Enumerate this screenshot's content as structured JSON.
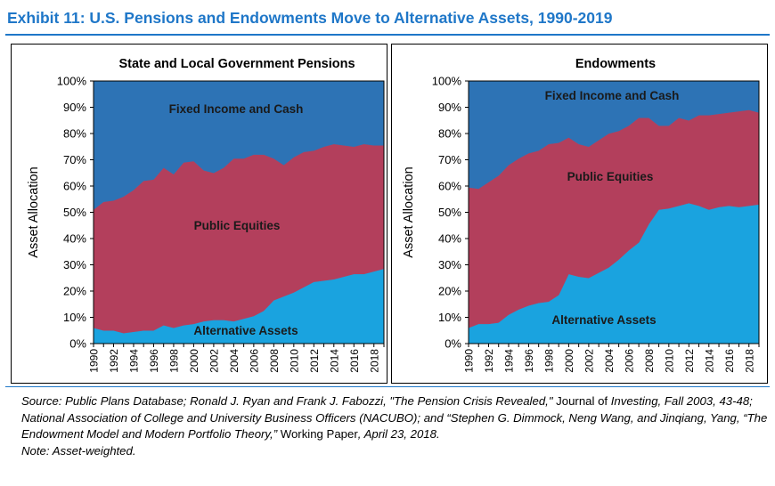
{
  "exhibit_title": "Exhibit 11: U.S. Pensions and Endowments Move to Alternative Assets, 1990-2019",
  "colors": {
    "fixed_income": "#2d73b5",
    "public_equities": "#b33f5c",
    "alternatives": "#1aa3df",
    "title": "#1f77c8"
  },
  "chart_data": [
    {
      "type": "area",
      "title": "State and Local Government Pensions",
      "ylabel": "Asset Allocation",
      "xlabel": "",
      "ylim": [
        0,
        100
      ],
      "yticks": [
        0,
        10,
        20,
        30,
        40,
        50,
        60,
        70,
        80,
        90,
        100
      ],
      "ytick_labels": [
        "0%",
        "10%",
        "20%",
        "30%",
        "40%",
        "50%",
        "60%",
        "70%",
        "80%",
        "90%",
        "100%"
      ],
      "xtick_labels": [
        "1990",
        "1992",
        "1994",
        "1996",
        "1998",
        "2000",
        "2002",
        "2004",
        "2006",
        "2008",
        "2010",
        "2012",
        "2014",
        "2016",
        "2018"
      ],
      "x": [
        1990,
        1991,
        1992,
        1993,
        1994,
        1995,
        1996,
        1997,
        1998,
        1999,
        2000,
        2001,
        2002,
        2003,
        2004,
        2005,
        2006,
        2007,
        2008,
        2009,
        2010,
        2011,
        2012,
        2013,
        2014,
        2015,
        2016,
        2017,
        2018,
        2019
      ],
      "series": [
        {
          "name": "Alternative Assets",
          "values": [
            6,
            5,
            5,
            4,
            4.5,
            5,
            5,
            7,
            6,
            7,
            7.5,
            8.5,
            9,
            9,
            8.5,
            9.5,
            10.5,
            12.5,
            16.5,
            18,
            19.5,
            21.5,
            23.5,
            24,
            24.5,
            25.5,
            26.5,
            26.5,
            27.5,
            28.5
          ]
        },
        {
          "name": "Public Equities",
          "values": [
            45,
            49,
            49.5,
            52,
            54,
            57,
            57.5,
            60,
            58.5,
            62,
            62,
            57.5,
            56,
            58,
            62,
            61,
            61.5,
            59.5,
            54,
            50,
            51.5,
            51.5,
            50,
            51,
            51.5,
            50,
            48.5,
            49.5,
            48,
            47
          ]
        },
        {
          "name": "Fixed Income and Cash",
          "values": [
            49,
            46,
            45.5,
            44,
            41.5,
            38,
            37.5,
            33,
            35.5,
            31,
            30.5,
            34,
            35,
            33,
            29.5,
            29.5,
            28,
            28,
            29.5,
            32,
            29,
            27,
            26.5,
            25,
            24,
            24.5,
            25,
            24,
            24.5,
            24.5
          ]
        }
      ],
      "labels": {
        "fixed_income": "Fixed Income and Cash",
        "public_equities": "Public Equities",
        "alternatives": "Alternative Assets"
      }
    },
    {
      "type": "area",
      "title": "Endowments",
      "ylabel": "Asset Allocation",
      "xlabel": "",
      "ylim": [
        0,
        100
      ],
      "yticks": [
        0,
        10,
        20,
        30,
        40,
        50,
        60,
        70,
        80,
        90,
        100
      ],
      "ytick_labels": [
        "0%",
        "10%",
        "20%",
        "30%",
        "40%",
        "50%",
        "60%",
        "70%",
        "80%",
        "90%",
        "100%"
      ],
      "xtick_labels": [
        "1990",
        "1992",
        "1994",
        "1996",
        "1998",
        "2000",
        "2002",
        "2004",
        "2006",
        "2008",
        "2010",
        "2012",
        "2014",
        "2016",
        "2018"
      ],
      "x": [
        1990,
        1991,
        1992,
        1993,
        1994,
        1995,
        1996,
        1997,
        1998,
        1999,
        2000,
        2001,
        2002,
        2003,
        2004,
        2005,
        2006,
        2007,
        2008,
        2009,
        2010,
        2011,
        2012,
        2013,
        2014,
        2015,
        2016,
        2017,
        2018,
        2019
      ],
      "series": [
        {
          "name": "Alternative Assets",
          "values": [
            6,
            7.5,
            7.5,
            8,
            11,
            13,
            14.5,
            15.5,
            16,
            18.5,
            26.5,
            25.5,
            25,
            27,
            29,
            32,
            35.5,
            38.5,
            45.5,
            51,
            51.5,
            52.5,
            53.5,
            52.5,
            51,
            52,
            52.5,
            52,
            52.5,
            53
          ]
        },
        {
          "name": "Public Equities",
          "values": [
            53.5,
            51.5,
            54,
            56,
            57,
            57.5,
            58,
            58,
            60,
            58,
            52,
            50.5,
            50,
            50.5,
            51,
            49,
            47.5,
            47.5,
            40.5,
            32,
            31.5,
            33.5,
            31.5,
            34.5,
            36,
            35.5,
            35.5,
            36.5,
            36.5,
            35
          ]
        },
        {
          "name": "Fixed Income and Cash",
          "values": [
            40.5,
            41,
            38.5,
            36,
            32,
            29.5,
            27.5,
            26.5,
            24,
            23.5,
            21.5,
            24,
            25,
            22.5,
            20,
            19,
            17,
            14,
            14,
            17,
            17,
            14,
            15,
            13,
            13,
            12.5,
            12,
            11.5,
            11,
            12
          ]
        }
      ],
      "labels": {
        "fixed_income": "Fixed Income and Cash",
        "public_equities": "Public Equities",
        "alternatives": "Alternative Assets"
      }
    }
  ],
  "source": {
    "p1": "Source: Public Plans Database; Ronald J. Ryan and Frank J. Fabozzi, \"The Pension Crisis Revealed,\"",
    "p2": " Journal of ",
    "p3": "Investing",
    "p4": ", Fall 2003, 43-48; National Association of College and University Business Officers (NACUBO); and “Stephen G. Dimmock, Neng Wang, and Jinqiang, Yang, “The Endowment Model and Modern Portfolio Theory,”",
    "p5": " Working Paper",
    "p6": ", April 23, 2018.",
    "note": "Note: Asset-weighted."
  }
}
